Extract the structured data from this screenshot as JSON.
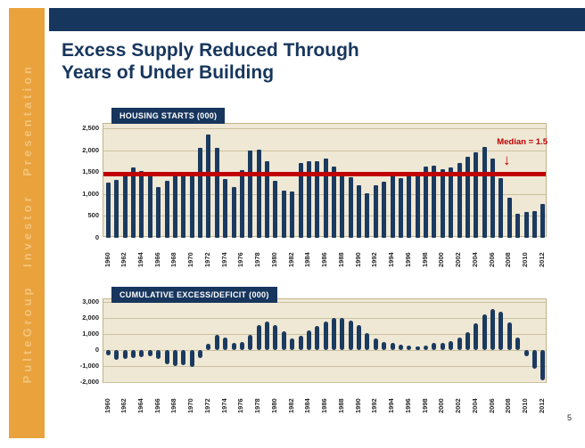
{
  "slide": {
    "page_number": "5"
  },
  "sidebar": {
    "label": "PulteGroup Investor Presentation"
  },
  "title": {
    "line1": "Excess Supply Reduced Through",
    "line2": "Years of Under Building"
  },
  "colors": {
    "navy": "#17365D",
    "bar_navy": "#1B3A5F",
    "gold": "#E9A23C",
    "gold_text": "#F4C47C",
    "plot_bg": "#EFE8D5",
    "plot_border": "#C2B488",
    "gridline": "#CBC1A0",
    "red": "#C00000"
  },
  "chart_data": [
    {
      "type": "bar",
      "title": "HOUSING STARTS (000)",
      "x": [
        1960,
        1961,
        1962,
        1963,
        1964,
        1965,
        1966,
        1967,
        1968,
        1969,
        1970,
        1971,
        1972,
        1973,
        1974,
        1975,
        1976,
        1977,
        1978,
        1979,
        1980,
        1981,
        1982,
        1983,
        1984,
        1985,
        1986,
        1987,
        1988,
        1989,
        1990,
        1991,
        1992,
        1993,
        1994,
        1995,
        1996,
        1997,
        1998,
        1999,
        2000,
        2001,
        2002,
        2003,
        2004,
        2005,
        2006,
        2007,
        2008,
        2009,
        2010,
        2011,
        2012
      ],
      "values": [
        1252,
        1313,
        1463,
        1610,
        1529,
        1473,
        1165,
        1292,
        1508,
        1467,
        1434,
        2052,
        2357,
        2045,
        1338,
        1160,
        1538,
        1987,
        2020,
        1745,
        1292,
        1084,
        1062,
        1703,
        1750,
        1742,
        1805,
        1620,
        1488,
        1376,
        1193,
        1014,
        1200,
        1288,
        1457,
        1354,
        1477,
        1474,
        1617,
        1641,
        1569,
        1603,
        1705,
        1848,
        1956,
        2068,
        1801,
        1355,
        906,
        554,
        587,
        609,
        780
      ],
      "ylim": [
        0,
        2500
      ],
      "yticks": [
        0,
        500,
        1000,
        1500,
        2000,
        2500
      ],
      "ytick_labels": [
        "0",
        "500",
        "1,000",
        "1,500",
        "2,000",
        "2,500"
      ],
      "xtick_step": 2,
      "grid": true,
      "legend_position": "none",
      "median_line": {
        "value": 1460,
        "label": "Median = 1.5",
        "arrow": "↓"
      }
    },
    {
      "type": "bar",
      "title": "CUMULATIVE EXCESS/DEFICIT (000)",
      "x": [
        1960,
        1961,
        1962,
        1963,
        1964,
        1965,
        1966,
        1967,
        1968,
        1969,
        1970,
        1971,
        1972,
        1973,
        1974,
        1975,
        1976,
        1977,
        1978,
        1979,
        1980,
        1981,
        1982,
        1983,
        1984,
        1985,
        1986,
        1987,
        1988,
        1989,
        1990,
        1991,
        1992,
        1993,
        1994,
        1995,
        1996,
        1997,
        1998,
        1999,
        2000,
        2001,
        2002,
        2003,
        2004,
        2005,
        2006,
        2007,
        2008,
        2009,
        2010,
        2011,
        2012
      ],
      "values": [
        -350,
        -600,
        -550,
        -500,
        -450,
        -400,
        -550,
        -900,
        -1000,
        -950,
        -1050,
        -500,
        400,
        950,
        800,
        450,
        500,
        950,
        1550,
        1800,
        1550,
        1150,
        750,
        900,
        1250,
        1500,
        1800,
        2000,
        2000,
        1850,
        1550,
        1050,
        700,
        500,
        420,
        350,
        280,
        230,
        300,
        420,
        450,
        570,
        760,
        1100,
        1650,
        2250,
        2550,
        2400,
        1750,
        800,
        -400,
        -1150,
        -1900
      ],
      "ylim": [
        -2000,
        3000
      ],
      "yticks": [
        -2000,
        -1000,
        0,
        1000,
        2000,
        3000
      ],
      "ytick_labels": [
        "-2,000",
        "-1,000",
        "0",
        "1,000",
        "2,000",
        "3,000"
      ],
      "xtick_step": 2,
      "grid": true,
      "legend_position": "none"
    }
  ]
}
